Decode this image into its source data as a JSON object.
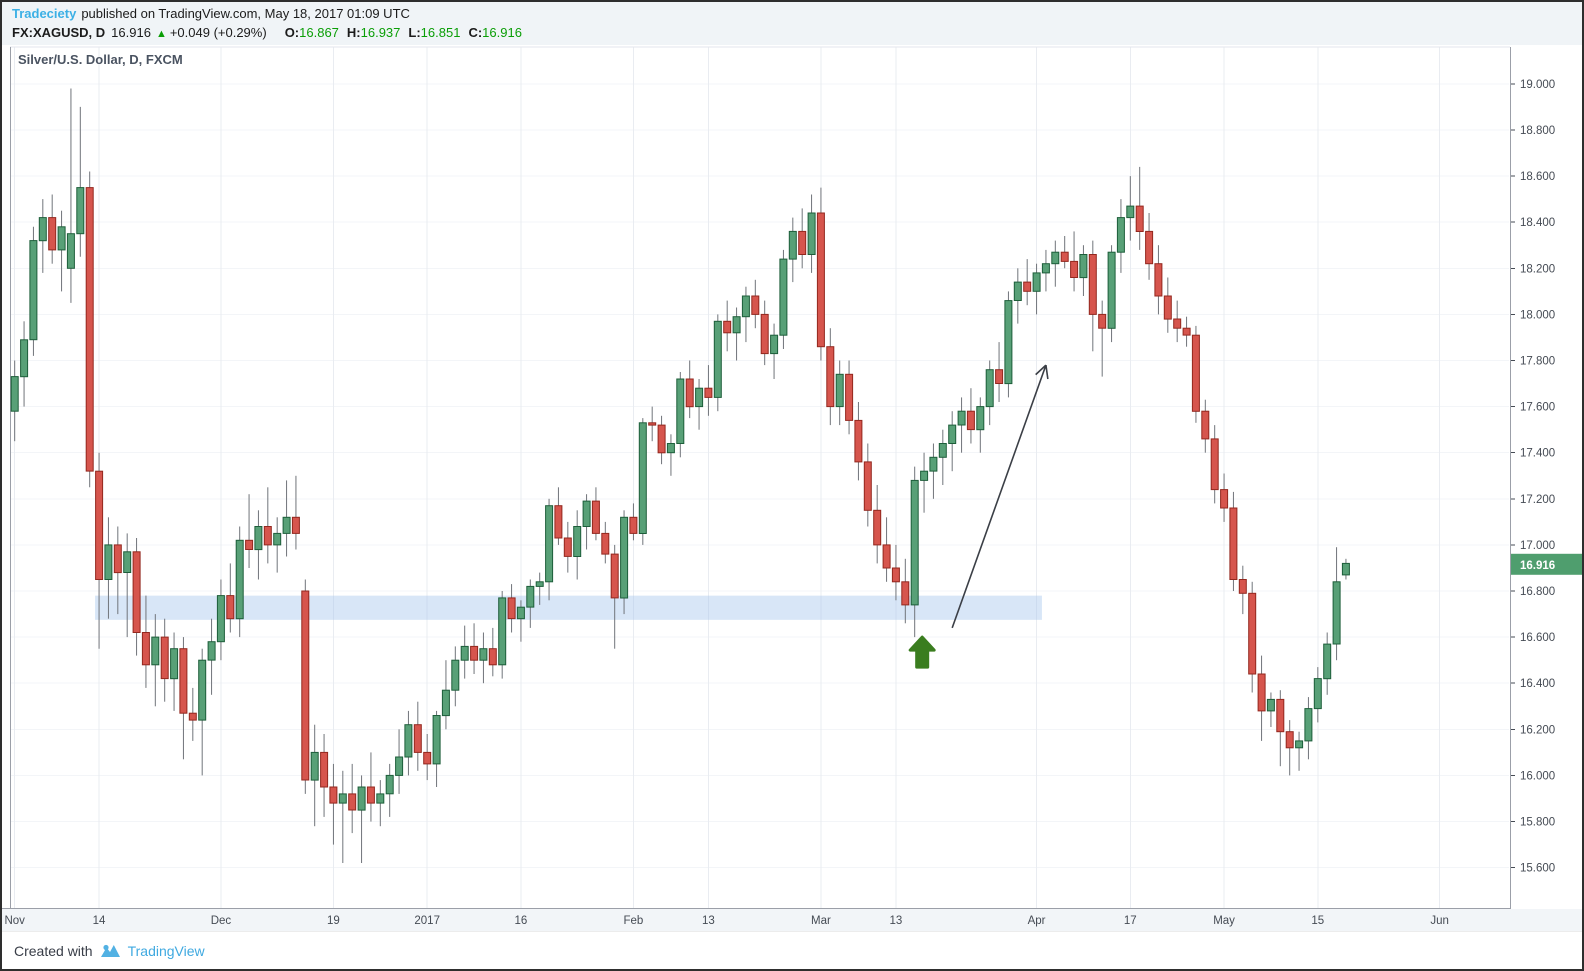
{
  "header": {
    "author": "Tradeciety",
    "published_text": "published on TradingView.com, May 18, 2017 01:09 UTC",
    "symbol": "FX:XAGUSD, D",
    "last_price": "16.916",
    "change_arrow": "▲",
    "change_text": "+0.049 (+0.29%)",
    "ohlc": [
      {
        "label": "O:",
        "value": "16.867"
      },
      {
        "label": "H:",
        "value": "16.937"
      },
      {
        "label": "L:",
        "value": "16.851"
      },
      {
        "label": "C:",
        "value": "16.916"
      }
    ]
  },
  "chart": {
    "title": "Silver/U.S. Dollar, D, FXCM",
    "price_tag": "16.916",
    "colors": {
      "up_fill": "#58a077",
      "up_border": "#1d5e3a",
      "down_fill": "#d6554d",
      "down_border": "#93271e",
      "wick": "#70747a",
      "grid_vertical": "#e9ecf1",
      "grid_horizontal": "#f3f5f8",
      "plot_border": "#9b9fa8",
      "plot_border_top": "#e3e6ec",
      "axis_text": "#454b54",
      "zone_fill": "#a9c7ed",
      "trend_arrow": "#3b3f46",
      "buy_arrow": "#3a7d1f",
      "price_tag_bg": "#4f9e6e",
      "price_tag_text": "#ffffff",
      "xaxis_strip_bg": "#f2f5f8"
    }
  },
  "footer": {
    "created_with": "Created with",
    "brand": "TradingView"
  },
  "chart_data": {
    "type": "candlestick",
    "symbol": "FX:XAGUSD",
    "timeframe": "D",
    "title": "Silver/U.S. Dollar, D, FXCM",
    "current_price": 16.916,
    "y_axis": {
      "min": 15.425,
      "max": 19.16,
      "ticks": [
        "19.000",
        "18.800",
        "18.600",
        "18.400",
        "18.200",
        "18.000",
        "17.800",
        "17.600",
        "17.400",
        "17.200",
        "17.000",
        "16.800",
        "16.600",
        "16.400",
        "16.200",
        "16.000",
        "15.800",
        "15.600"
      ]
    },
    "x_axis": {
      "total_slots": 160,
      "labels": [
        {
          "text": "Nov",
          "index": 0
        },
        {
          "text": "14",
          "index": 9
        },
        {
          "text": "Dec",
          "index": 22
        },
        {
          "text": "19",
          "index": 34
        },
        {
          "text": "2017",
          "index": 44
        },
        {
          "text": "16",
          "index": 54
        },
        {
          "text": "Feb",
          "index": 66
        },
        {
          "text": "13",
          "index": 74
        },
        {
          "text": "Mar",
          "index": 86
        },
        {
          "text": "13",
          "index": 94
        },
        {
          "text": "Apr",
          "index": 109
        },
        {
          "text": "17",
          "index": 119
        },
        {
          "text": "May",
          "index": 129
        },
        {
          "text": "15",
          "index": 139
        },
        {
          "text": "Jun",
          "index": 152
        }
      ]
    },
    "candles": [
      [
        17.58,
        17.8,
        17.45,
        17.73
      ],
      [
        17.73,
        17.97,
        17.6,
        17.89
      ],
      [
        17.89,
        18.38,
        17.82,
        18.32
      ],
      [
        18.32,
        18.5,
        18.18,
        18.42
      ],
      [
        18.42,
        18.52,
        18.22,
        18.28
      ],
      [
        18.28,
        18.45,
        18.1,
        18.38
      ],
      [
        18.2,
        18.98,
        18.05,
        18.35
      ],
      [
        18.35,
        18.9,
        18.25,
        18.55
      ],
      [
        18.55,
        18.62,
        17.25,
        17.32
      ],
      [
        17.32,
        17.4,
        16.55,
        16.85
      ],
      [
        16.85,
        17.12,
        16.68,
        17.0
      ],
      [
        17.0,
        17.08,
        16.7,
        16.88
      ],
      [
        16.88,
        17.05,
        16.6,
        16.97
      ],
      [
        16.97,
        17.03,
        16.52,
        16.62
      ],
      [
        16.62,
        16.78,
        16.38,
        16.48
      ],
      [
        16.48,
        16.7,
        16.3,
        16.6
      ],
      [
        16.6,
        16.68,
        16.32,
        16.42
      ],
      [
        16.42,
        16.62,
        16.28,
        16.55
      ],
      [
        16.55,
        16.6,
        16.07,
        16.27
      ],
      [
        16.27,
        16.38,
        16.15,
        16.24
      ],
      [
        16.24,
        16.55,
        16.0,
        16.5
      ],
      [
        16.5,
        16.68,
        16.35,
        16.58
      ],
      [
        16.58,
        16.85,
        16.5,
        16.78
      ],
      [
        16.78,
        16.92,
        16.62,
        16.68
      ],
      [
        16.68,
        17.08,
        16.6,
        17.02
      ],
      [
        17.02,
        17.22,
        16.9,
        16.98
      ],
      [
        16.98,
        17.15,
        16.85,
        17.08
      ],
      [
        17.08,
        17.25,
        16.92,
        17.0
      ],
      [
        17.0,
        17.12,
        16.88,
        17.05
      ],
      [
        17.05,
        17.28,
        16.95,
        17.12
      ],
      [
        17.12,
        17.3,
        16.98,
        17.05
      ],
      [
        16.8,
        16.85,
        15.92,
        15.98
      ],
      [
        15.98,
        16.22,
        15.78,
        16.1
      ],
      [
        16.1,
        16.18,
        15.82,
        15.95
      ],
      [
        15.95,
        16.05,
        15.7,
        15.88
      ],
      [
        15.88,
        16.02,
        15.62,
        15.92
      ],
      [
        15.92,
        16.05,
        15.75,
        15.85
      ],
      [
        15.85,
        16.0,
        15.62,
        15.95
      ],
      [
        15.95,
        16.1,
        15.8,
        15.88
      ],
      [
        15.88,
        15.98,
        15.78,
        15.92
      ],
      [
        15.92,
        16.05,
        15.82,
        16.0
      ],
      [
        16.0,
        16.2,
        15.92,
        16.08
      ],
      [
        16.08,
        16.28,
        16.0,
        16.22
      ],
      [
        16.22,
        16.32,
        16.02,
        16.1
      ],
      [
        16.1,
        16.18,
        15.98,
        16.05
      ],
      [
        16.05,
        16.28,
        15.95,
        16.26
      ],
      [
        16.26,
        16.5,
        16.2,
        16.37
      ],
      [
        16.37,
        16.56,
        16.3,
        16.5
      ],
      [
        16.5,
        16.65,
        16.42,
        16.56
      ],
      [
        16.56,
        16.66,
        16.44,
        16.5
      ],
      [
        16.5,
        16.62,
        16.4,
        16.55
      ],
      [
        16.55,
        16.64,
        16.43,
        16.48
      ],
      [
        16.48,
        16.8,
        16.42,
        16.77
      ],
      [
        16.77,
        16.83,
        16.62,
        16.68
      ],
      [
        16.68,
        16.76,
        16.58,
        16.73
      ],
      [
        16.73,
        16.85,
        16.64,
        16.82
      ],
      [
        16.82,
        16.88,
        16.74,
        16.84
      ],
      [
        16.84,
        17.2,
        16.76,
        17.17
      ],
      [
        17.17,
        17.25,
        17.0,
        17.03
      ],
      [
        17.03,
        17.1,
        16.88,
        16.95
      ],
      [
        16.95,
        17.15,
        16.85,
        17.08
      ],
      [
        17.08,
        17.22,
        16.98,
        17.19
      ],
      [
        17.19,
        17.25,
        17.02,
        17.05
      ],
      [
        17.05,
        17.1,
        16.92,
        16.96
      ],
      [
        16.96,
        17.0,
        16.55,
        16.77
      ],
      [
        16.77,
        17.15,
        16.7,
        17.12
      ],
      [
        17.12,
        17.18,
        17.02,
        17.05
      ],
      [
        17.05,
        17.55,
        17.0,
        17.53
      ],
      [
        17.53,
        17.6,
        17.45,
        17.52
      ],
      [
        17.52,
        17.56,
        17.35,
        17.4
      ],
      [
        17.4,
        17.48,
        17.3,
        17.44
      ],
      [
        17.44,
        17.75,
        17.38,
        17.72
      ],
      [
        17.72,
        17.8,
        17.55,
        17.6
      ],
      [
        17.6,
        17.72,
        17.5,
        17.68
      ],
      [
        17.68,
        17.78,
        17.56,
        17.64
      ],
      [
        17.64,
        18.0,
        17.58,
        17.97
      ],
      [
        17.97,
        18.06,
        17.84,
        17.92
      ],
      [
        17.92,
        18.03,
        17.8,
        17.99
      ],
      [
        17.99,
        18.12,
        17.88,
        18.08
      ],
      [
        18.08,
        18.15,
        17.94,
        18.0
      ],
      [
        18.0,
        18.06,
        17.78,
        17.83
      ],
      [
        17.83,
        17.96,
        17.72,
        17.91
      ],
      [
        17.91,
        18.28,
        17.85,
        18.24
      ],
      [
        18.24,
        18.42,
        18.14,
        18.36
      ],
      [
        18.36,
        18.46,
        18.2,
        18.26
      ],
      [
        18.26,
        18.52,
        18.18,
        18.44
      ],
      [
        18.44,
        18.55,
        17.8,
        17.86
      ],
      [
        17.86,
        17.94,
        17.52,
        17.6
      ],
      [
        17.6,
        17.8,
        17.52,
        17.74
      ],
      [
        17.74,
        17.8,
        17.48,
        17.54
      ],
      [
        17.54,
        17.62,
        17.28,
        17.36
      ],
      [
        17.36,
        17.44,
        17.08,
        17.15
      ],
      [
        17.15,
        17.26,
        16.92,
        17.0
      ],
      [
        17.0,
        17.12,
        16.84,
        16.9
      ],
      [
        16.9,
        17.0,
        16.76,
        16.84
      ],
      [
        16.84,
        16.94,
        16.66,
        16.74
      ],
      [
        16.74,
        17.34,
        16.6,
        17.28
      ],
      [
        17.28,
        17.4,
        17.14,
        17.32
      ],
      [
        17.32,
        17.44,
        17.2,
        17.38
      ],
      [
        17.38,
        17.5,
        17.26,
        17.44
      ],
      [
        17.44,
        17.58,
        17.32,
        17.52
      ],
      [
        17.52,
        17.64,
        17.4,
        17.58
      ],
      [
        17.58,
        17.68,
        17.44,
        17.5
      ],
      [
        17.5,
        17.64,
        17.4,
        17.6
      ],
      [
        17.6,
        17.8,
        17.52,
        17.76
      ],
      [
        17.76,
        17.88,
        17.62,
        17.7
      ],
      [
        17.7,
        18.1,
        17.64,
        18.06
      ],
      [
        18.06,
        18.2,
        17.96,
        18.14
      ],
      [
        18.14,
        18.24,
        18.04,
        18.1
      ],
      [
        18.1,
        18.22,
        18.0,
        18.18
      ],
      [
        18.18,
        18.28,
        18.1,
        18.22
      ],
      [
        18.22,
        18.32,
        18.12,
        18.27
      ],
      [
        18.27,
        18.34,
        18.2,
        18.23
      ],
      [
        18.23,
        18.36,
        18.1,
        18.16
      ],
      [
        18.16,
        18.3,
        18.08,
        18.26
      ],
      [
        18.26,
        18.32,
        17.84,
        18.0
      ],
      [
        18.0,
        18.06,
        17.73,
        17.94
      ],
      [
        17.94,
        18.3,
        17.88,
        18.27
      ],
      [
        18.27,
        18.5,
        18.18,
        18.42
      ],
      [
        18.42,
        18.6,
        18.32,
        18.47
      ],
      [
        18.47,
        18.64,
        18.28,
        18.36
      ],
      [
        18.36,
        18.44,
        18.15,
        18.22
      ],
      [
        18.22,
        18.3,
        18.0,
        18.08
      ],
      [
        18.08,
        18.16,
        17.92,
        17.98
      ],
      [
        17.98,
        18.06,
        17.88,
        17.94
      ],
      [
        17.94,
        17.99,
        17.86,
        17.91
      ],
      [
        17.91,
        17.95,
        17.53,
        17.58
      ],
      [
        17.58,
        17.63,
        17.4,
        17.46
      ],
      [
        17.46,
        17.52,
        17.18,
        17.24
      ],
      [
        17.24,
        17.31,
        17.1,
        17.16
      ],
      [
        17.16,
        17.23,
        16.8,
        16.85
      ],
      [
        16.85,
        16.91,
        16.7,
        16.79
      ],
      [
        16.79,
        16.84,
        16.36,
        16.44
      ],
      [
        16.44,
        16.52,
        16.15,
        16.28
      ],
      [
        16.28,
        16.36,
        16.21,
        16.33
      ],
      [
        16.33,
        16.37,
        16.04,
        16.19
      ],
      [
        16.19,
        16.24,
        16.0,
        16.12
      ],
      [
        16.12,
        16.19,
        16.02,
        16.15
      ],
      [
        16.15,
        16.34,
        16.07,
        16.29
      ],
      [
        16.29,
        16.47,
        16.23,
        16.42
      ],
      [
        16.42,
        16.62,
        16.35,
        16.57
      ],
      [
        16.57,
        16.99,
        16.5,
        16.84
      ],
      [
        16.87,
        16.94,
        16.85,
        16.92
      ]
    ],
    "support_zone": {
      "start_index": 9,
      "end_index": 110,
      "price_top": 16.78,
      "price_bottom": 16.675
    },
    "trend_arrow": {
      "from_index": 100,
      "from_price": 16.64,
      "to_index": 110,
      "to_price": 17.78
    },
    "buy_arrow": {
      "index": 96.8,
      "price": 16.6
    },
    "legend_position": "none",
    "grid": true
  }
}
